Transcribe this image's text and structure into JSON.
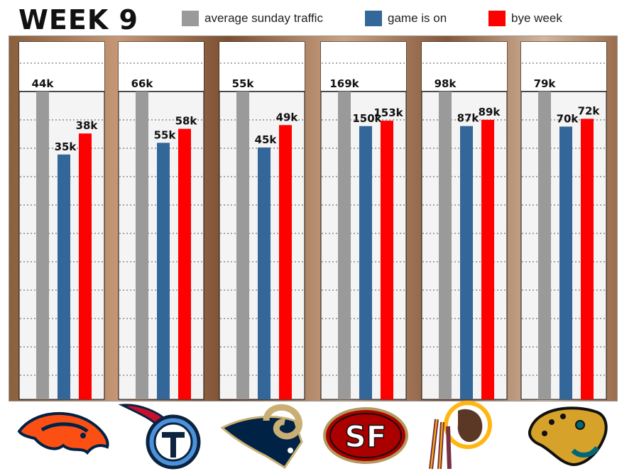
{
  "header": {
    "title": "WEEK 9"
  },
  "legend": [
    {
      "label": "average sunday traffic",
      "color": "#9a9a9a"
    },
    {
      "label": "game is on",
      "color": "#336699"
    },
    {
      "label": "bye week",
      "color": "#ff0000"
    }
  ],
  "chart_data": {
    "type": "bar",
    "title": "WEEK 9",
    "categories": [
      "Denver Broncos",
      "Tennessee Titans",
      "St. Louis Rams",
      "San Francisco 49ers",
      "Washington Redskins",
      "Jacksonville Jaguars"
    ],
    "series": [
      {
        "name": "average sunday traffic",
        "values": [
          44,
          66,
          55,
          169,
          98,
          79
        ],
        "labels": [
          "44k",
          "66k",
          "55k",
          "169k",
          "98k",
          "79k"
        ],
        "color": "#9a9a9a"
      },
      {
        "name": "game is on",
        "values": [
          35,
          55,
          45,
          150,
          87,
          70
        ],
        "labels": [
          "35k",
          "55k",
          "45k",
          "150k",
          "87k",
          "70k"
        ],
        "color": "#336699"
      },
      {
        "name": "bye week",
        "values": [
          38,
          58,
          49,
          153,
          89,
          72
        ],
        "labels": [
          "38k",
          "58k",
          "49k",
          "153k",
          "89k",
          "72k"
        ],
        "color": "#ff0000"
      }
    ],
    "note": "each team panel is scaled independently; average sunday traffic bar reaches panel top",
    "grid": true,
    "legend_position": "top"
  },
  "logos": [
    {
      "icon": "broncos-logo-icon",
      "color": "#fb4f14"
    },
    {
      "icon": "titans-logo-icon",
      "color": "#4b92db"
    },
    {
      "icon": "rams-logo-icon",
      "color": "#002244"
    },
    {
      "icon": "49ers-logo-icon",
      "color": "#aa0000"
    },
    {
      "icon": "redskins-logo-icon",
      "color": "#773141"
    },
    {
      "icon": "jaguars-logo-icon",
      "color": "#006778"
    }
  ]
}
